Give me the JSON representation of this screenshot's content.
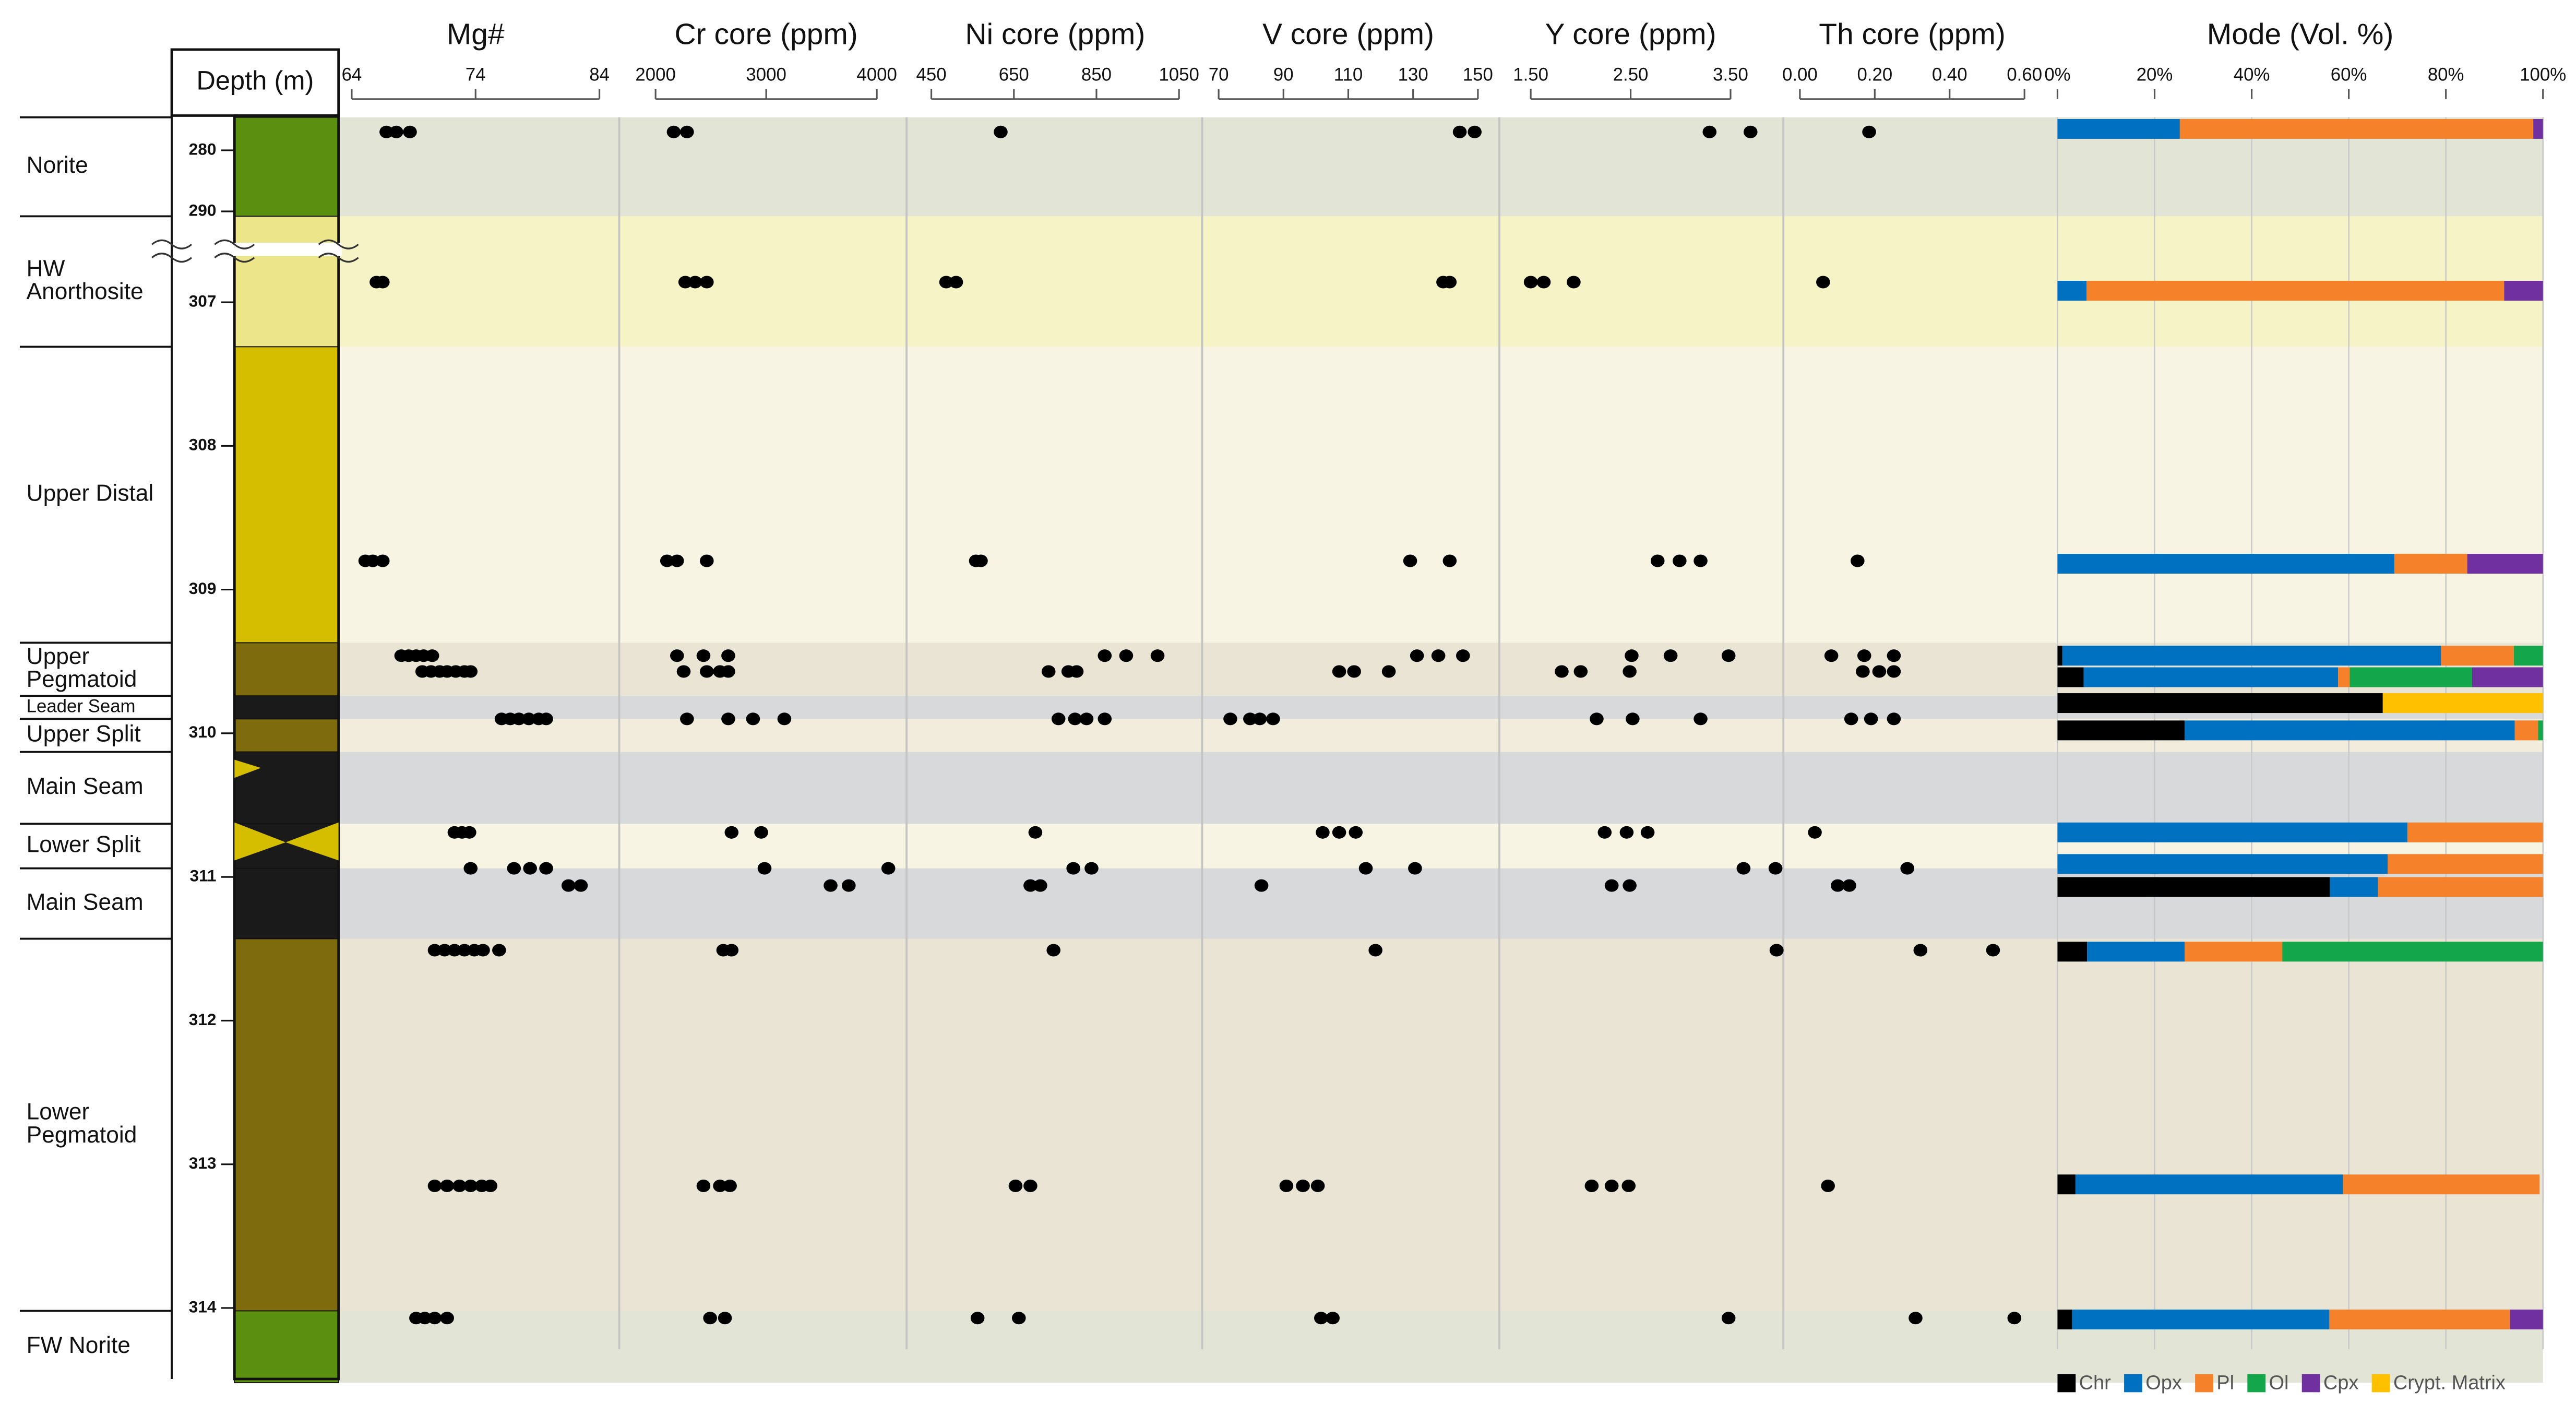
{
  "chart_data": [
    {
      "type": "strat_column",
      "ylabel": "Depth (m)",
      "yticks": [
        280,
        290,
        307,
        308,
        309,
        310,
        311,
        312,
        313,
        314
      ],
      "axis_break": [
        290,
        307
      ],
      "units": [
        {
          "name": [
            "Norite"
          ],
          "top": 274.6,
          "bottom": 290.8,
          "color": "#5a8f0f",
          "background": "#e2e4d6"
        },
        {
          "name": [
            "HW",
            "Anorthosite"
          ],
          "top": 290.8,
          "bottom": 307.31,
          "color": "#ece58a",
          "background": "#f6f3c6"
        },
        {
          "name": [
            "Upper Distal"
          ],
          "top": 307.31,
          "bottom": 309.37,
          "color": "#d5bd00",
          "background": "#f8f4e3"
        },
        {
          "name": [
            "Upper",
            "Pegmatoid"
          ],
          "top": 309.37,
          "bottom": 309.74,
          "color": "#7d6b0e",
          "background": "#e9e4d4"
        },
        {
          "name": [
            "Leader Seam"
          ],
          "top": 309.74,
          "bottom": 309.9,
          "color": "#1a1a1a",
          "background": "#d7d9db"
        },
        {
          "name": [
            "Upper Split"
          ],
          "top": 309.9,
          "bottom": 310.13,
          "color": "#7d6b0e",
          "background": "#f1ecdc"
        },
        {
          "name": [
            "Main Seam"
          ],
          "top": 310.13,
          "bottom": 310.63,
          "color": "#1a1a1a",
          "background": "#d7d9db"
        },
        {
          "name": [
            "Lower Split"
          ],
          "top": 310.63,
          "bottom": 310.94,
          "color": "#1a1a1a",
          "background": "#f8f4e3"
        },
        {
          "name": [
            "Main Seam"
          ],
          "top": 310.94,
          "bottom": 311.43,
          "color": "#1a1a1a",
          "background": "#d7d9db"
        },
        {
          "name": [
            "Lower",
            "Pegmatoid"
          ],
          "top": 311.43,
          "bottom": 314.02,
          "color": "#7d6b0e",
          "background": "#e9e4d4"
        },
        {
          "name": [
            "FW Norite"
          ],
          "top": 314.02,
          "bottom": 314.52,
          "color": "#5a8f0f",
          "background": "#e2e4d6"
        }
      ]
    },
    {
      "type": "scatter",
      "title": "Mg#",
      "xlim": [
        64,
        84
      ],
      "xticks": [
        64,
        74,
        84
      ],
      "color": "#000000",
      "x": [
        66.8,
        67.6,
        68.7,
        66.0,
        66.5,
        65.1,
        65.7,
        66.5,
        68.0,
        68.6,
        69.2,
        69.8,
        70.5,
        69.7,
        70.4,
        71.1,
        71.7,
        72.4,
        73.1,
        73.6,
        76.1,
        76.8,
        77.5,
        78.3,
        79.1,
        79.7,
        72.3,
        72.9,
        73.5,
        73.6,
        77.1,
        78.4,
        79.7,
        81.5,
        82.5,
        70.7,
        71.5,
        72.3,
        73.1,
        73.9,
        74.6,
        75.9,
        70.7,
        71.7,
        72.7,
        73.6,
        74.5,
        75.2,
        69.2,
        69.9,
        70.7,
        71.7
      ],
      "y": [
        277.0,
        277.0,
        277.0,
        306.86,
        306.86,
        308.8,
        308.8,
        308.8,
        309.46,
        309.46,
        309.46,
        309.46,
        309.46,
        309.57,
        309.57,
        309.57,
        309.57,
        309.57,
        309.57,
        309.57,
        309.9,
        309.9,
        309.9,
        309.9,
        309.9,
        309.9,
        310.69,
        310.69,
        310.69,
        310.94,
        310.94,
        310.94,
        310.94,
        311.06,
        311.06,
        311.51,
        311.51,
        311.51,
        311.51,
        311.51,
        311.51,
        311.51,
        313.15,
        313.15,
        313.15,
        313.15,
        313.15,
        313.15,
        314.07,
        314.07,
        314.07,
        314.07
      ]
    },
    {
      "type": "scatter",
      "title": "Cr core (ppm)",
      "xlim": [
        2000,
        4000
      ],
      "xticks": [
        2000,
        3000,
        4000
      ],
      "color": "#000000",
      "x": [
        2164,
        2284,
        2269,
        2358,
        2463,
        2104,
        2194,
        2463,
        2194,
        2433,
        2657,
        2254,
        2463,
        2582,
        2657,
        2284,
        2657,
        2881,
        3164,
        2687,
        2955,
        2985,
        4104,
        3582,
        3746,
        2612,
        2687,
        2433,
        2582,
        2672,
        2493,
        2627
      ],
      "y": [
        277.0,
        277.0,
        306.86,
        306.86,
        306.86,
        308.8,
        308.8,
        308.8,
        309.46,
        309.46,
        309.46,
        309.57,
        309.57,
        309.57,
        309.57,
        309.9,
        309.9,
        309.9,
        309.9,
        310.69,
        310.69,
        310.94,
        310.94,
        311.06,
        311.06,
        311.51,
        311.51,
        313.15,
        313.15,
        313.15,
        314.07,
        314.07
      ]
    },
    {
      "type": "scatter",
      "title": "Ni core (ppm)",
      "xlim": [
        450,
        1050
      ],
      "xticks": [
        450,
        650,
        850,
        1050
      ],
      "color": "#000000",
      "x": [
        618,
        486,
        510,
        558,
        570,
        870,
        922,
        998,
        734,
        782,
        802,
        758,
        798,
        826,
        870,
        702,
        794,
        838,
        690,
        714,
        746,
        654,
        690,
        562,
        662
      ],
      "y": [
        277.0,
        306.86,
        306.86,
        308.8,
        308.8,
        309.46,
        309.46,
        309.46,
        309.57,
        309.57,
        309.57,
        309.9,
        309.9,
        309.9,
        309.9,
        310.69,
        310.94,
        310.94,
        311.06,
        311.06,
        311.51,
        313.15,
        313.15,
        314.07,
        314.07
      ]
    },
    {
      "type": "scatter",
      "title": "V core (ppm)",
      "xlim": [
        70,
        150
      ],
      "xticks": [
        70,
        90,
        110,
        130,
        150
      ],
      "color": "#000000",
      "x": [
        144.4,
        149.0,
        139.3,
        141.3,
        129.1,
        141.3,
        131.2,
        137.8,
        145.4,
        107.2,
        111.8,
        122.5,
        73.6,
        79.7,
        82.7,
        86.8,
        102.1,
        107.2,
        112.3,
        115.4,
        130.6,
        83.2,
        118.4,
        90.9,
        96.0,
        100.6,
        101.6,
        105.2
      ],
      "y": [
        277.0,
        277.0,
        306.86,
        306.86,
        308.8,
        308.8,
        309.46,
        309.46,
        309.46,
        309.57,
        309.57,
        309.57,
        309.9,
        309.9,
        309.9,
        309.9,
        310.69,
        310.69,
        310.69,
        310.94,
        310.94,
        311.06,
        311.51,
        313.15,
        313.15,
        313.15,
        314.07,
        314.07
      ]
    },
    {
      "type": "scatter",
      "title": "Y core (ppm)",
      "xlim": [
        1.5,
        3.5
      ],
      "xticks": [
        {
          "value": 1.5,
          "label": "1.50"
        },
        {
          "value": 2.5,
          "label": "2.50"
        },
        {
          "value": 3.5,
          "label": "3.50"
        }
      ],
      "color": "#000000",
      "x": [
        3.29,
        3.7,
        1.5,
        1.63,
        1.93,
        2.77,
        2.99,
        3.2,
        2.51,
        2.9,
        3.48,
        1.81,
        2.0,
        2.49,
        2.16,
        2.52,
        3.2,
        2.24,
        2.46,
        2.67,
        3.63,
        3.95,
        2.31,
        2.49,
        3.96,
        2.11,
        2.31,
        2.48,
        3.48
      ],
      "y": [
        277.0,
        277.0,
        306.86,
        306.86,
        306.86,
        308.8,
        308.8,
        308.8,
        309.46,
        309.46,
        309.46,
        309.57,
        309.57,
        309.57,
        309.9,
        309.9,
        309.9,
        310.69,
        310.69,
        310.69,
        310.94,
        310.94,
        311.06,
        311.06,
        311.51,
        313.15,
        313.15,
        313.15,
        314.07
      ]
    },
    {
      "type": "scatter",
      "title": "Th core (ppm)",
      "xlim": [
        0,
        0.6
      ],
      "xticks": [
        {
          "value": 0,
          "label": "0.00"
        },
        {
          "value": 0.2,
          "label": "0.20"
        },
        {
          "value": 0.4,
          "label": "0.40"
        },
        {
          "value": 0.6,
          "label": "0.60"
        }
      ],
      "color": "#000000",
      "x": [
        0.185,
        0.062,
        0.154,
        0.084,
        0.172,
        0.251,
        0.168,
        0.212,
        0.251,
        0.137,
        0.19,
        0.251,
        0.04,
        0.287,
        0.101,
        0.132,
        -0.062,
        0.322,
        0.516,
        0.075,
        0.309,
        0.573
      ],
      "y": [
        277.0,
        306.86,
        308.8,
        309.46,
        309.46,
        309.46,
        309.57,
        309.57,
        309.57,
        309.9,
        309.9,
        309.9,
        310.69,
        310.94,
        311.06,
        311.06,
        311.51,
        311.51,
        311.51,
        313.15,
        314.07,
        314.07
      ]
    },
    {
      "type": "bar",
      "orientation": "horizontal",
      "stacked": true,
      "grid": true,
      "title": "Mode (Vol. %)",
      "xlim": [
        0,
        100
      ],
      "xticks": [
        {
          "value": 0,
          "label": "0%"
        },
        {
          "value": 20,
          "label": "20%"
        },
        {
          "value": 40,
          "label": "40%"
        },
        {
          "value": 60,
          "label": "60%"
        },
        {
          "value": 80,
          "label": "80%"
        },
        {
          "value": 100,
          "label": "100%"
        }
      ],
      "depths": [
        276.5,
        306.92,
        308.82,
        309.46,
        309.61,
        309.79,
        309.98,
        310.69,
        310.91,
        311.07,
        311.52,
        313.14,
        314.08
      ],
      "series": [
        {
          "name": "Chr",
          "color": "#000000",
          "values": [
            null,
            null,
            null,
            1,
            5.4,
            67,
            26.2,
            null,
            null,
            56.1,
            6.1,
            3.7,
            3
          ]
        },
        {
          "name": "Opx",
          "color": "#0070c0",
          "values": [
            25.2,
            6,
            69.4,
            78,
            52.4,
            null,
            68,
            72.1,
            68,
            9.9,
            20.1,
            55.1,
            53
          ]
        },
        {
          "name": "Pl",
          "color": "#f5822a",
          "values": [
            72.8,
            86,
            15,
            15,
            2.4,
            null,
            4.8,
            27.9,
            32,
            34,
            20.1,
            40.5,
            37.2
          ]
        },
        {
          "name": "Ol",
          "color": "#13a64a",
          "values": [
            null,
            null,
            null,
            6,
            25.2,
            null,
            1,
            null,
            null,
            null,
            53.7,
            null,
            null
          ]
        },
        {
          "name": "Cpx",
          "color": "#7030a0",
          "values": [
            2,
            8,
            15.6,
            null,
            14.6,
            null,
            null,
            null,
            null,
            null,
            null,
            null,
            6.8
          ]
        },
        {
          "name": "Crypt. Matrix",
          "color": "#ffc000",
          "values": [
            null,
            null,
            null,
            null,
            null,
            33,
            null,
            null,
            null,
            null,
            null,
            null,
            null
          ]
        }
      ]
    }
  ]
}
